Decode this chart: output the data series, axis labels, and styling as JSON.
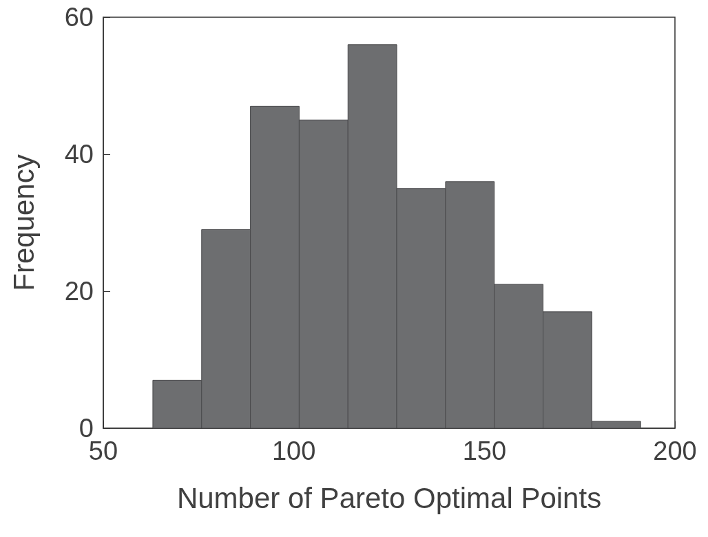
{
  "chart_data": {
    "type": "histogram",
    "xlabel": "Number of Pareto Optimal Points",
    "ylabel": "Frequency",
    "bins": [
      63,
      75.8,
      88.6,
      101.4,
      114.2,
      127,
      139.8,
      152.6,
      165.4,
      178.2,
      191
    ],
    "values": [
      7,
      29,
      47,
      45,
      56,
      35,
      36,
      21,
      17,
      1
    ],
    "color": "#6d6e70",
    "xlim": [
      50,
      200
    ],
    "xticks": [
      50,
      100,
      150,
      200
    ],
    "ylim": [
      0,
      60
    ],
    "yticks": [
      0,
      20,
      40,
      60
    ],
    "grid": false
  }
}
